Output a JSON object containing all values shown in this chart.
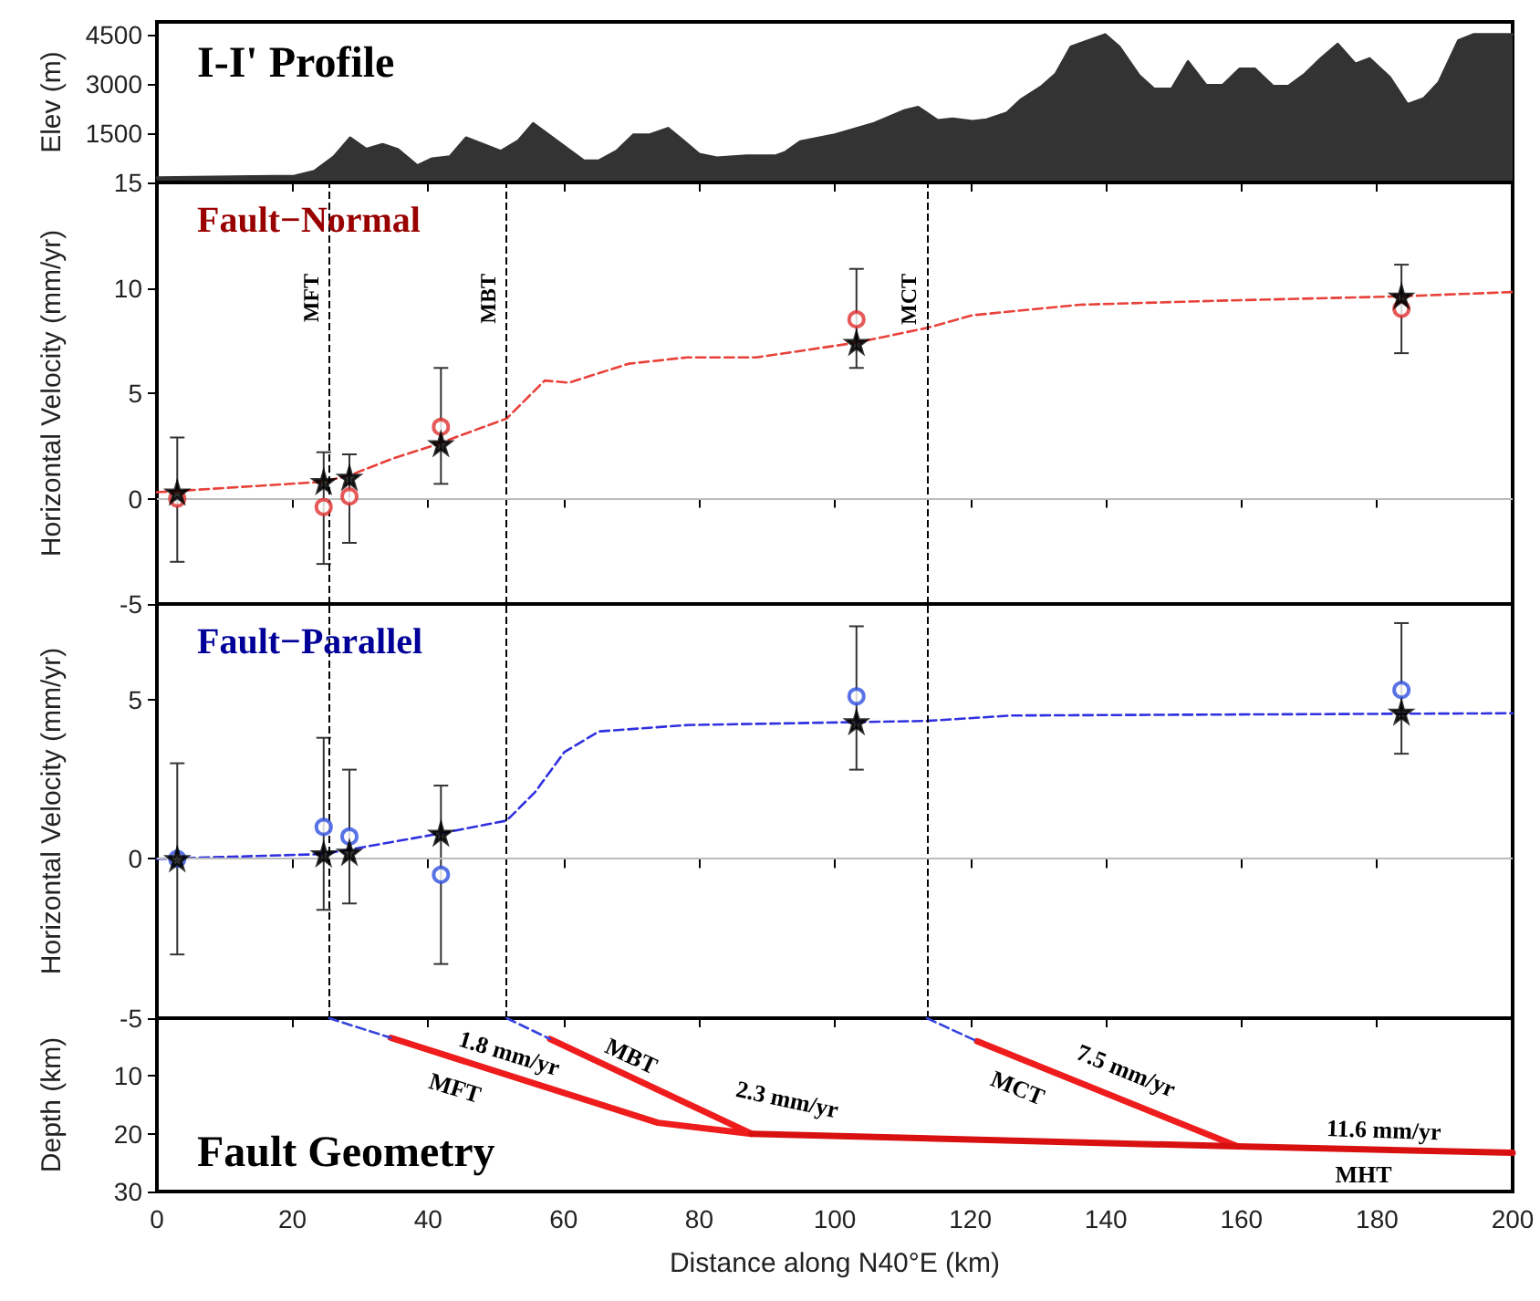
{
  "chart_data": [
    {
      "type": "area",
      "title": "I-I' Profile",
      "ylabel": "Elev (m)",
      "xlim": [
        0,
        200
      ],
      "xticks": [
        0,
        20,
        40,
        60,
        80,
        100,
        120,
        140,
        160,
        180,
        200
      ],
      "ylim": [
        0,
        4900
      ],
      "yticks": [
        1500,
        3000,
        4500
      ],
      "tick_labels": "y",
      "marker": "none",
      "series": [
        {
          "color": "#333333",
          "x": [
            0,
            20.3,
            23.2,
            26.1,
            28.5,
            30.9,
            33.3,
            35.5,
            38.4,
            40.6,
            43.2,
            45.6,
            50.7,
            53.3,
            55.5,
            63.0,
            65.2,
            67.8,
            70.3,
            72.7,
            75.4,
            77.5,
            80.0,
            82.6,
            87.0,
            91.3,
            92.7,
            94.9,
            100.0,
            105.8,
            110.1,
            112.3,
            115.2,
            117.4,
            120.3,
            122.4,
            125.4,
            127.5,
            130.4,
            132.6,
            134.8,
            139.9,
            142.0,
            144.9,
            147.1,
            149.7,
            152.1,
            154.8,
            157.2,
            159.7,
            162.0,
            164.7,
            166.9,
            169.2,
            171.7,
            174.2,
            176.8,
            178.9,
            181.9,
            184.5,
            186.9,
            189.1,
            192.0,
            194.2,
            200
          ],
          "values": [
            150,
            200,
            350,
            790,
            1370,
            1020,
            1170,
            1020,
            520,
            730,
            790,
            1370,
            960,
            1280,
            1810,
            670,
            670,
            960,
            1460,
            1460,
            1660,
            1310,
            870,
            760,
            820,
            820,
            930,
            1250,
            1460,
            1810,
            2190,
            2300,
            1900,
            1950,
            1870,
            1920,
            2130,
            2540,
            2920,
            3320,
            4140,
            4520,
            4140,
            3270,
            2860,
            2860,
            3700,
            2970,
            2970,
            3470,
            3470,
            2940,
            2940,
            3290,
            3790,
            4230,
            3620,
            3790,
            3210,
            2390,
            2570,
            3060,
            4340,
            4520,
            4520
          ]
        }
      ]
    },
    {
      "type": "line",
      "title": "Fault−Normal",
      "ylabel": "Horizontal Velocity (mm/yr)",
      "xlim": [
        0,
        200
      ],
      "xticks": [
        0,
        20,
        40,
        60,
        80,
        100,
        120,
        140,
        160,
        180,
        200
      ],
      "ylim": [
        -5,
        15
      ],
      "yticks": [
        -5,
        0,
        5,
        10,
        15
      ],
      "tick_labels": "y",
      "ref_lines": [
        {
          "axis": "x",
          "value": 25.4,
          "label": "MFT",
          "color": "#000000",
          "line_style": "dashed"
        },
        {
          "axis": "x",
          "value": 51.6,
          "label": "MBT",
          "color": "#000000",
          "line_style": "dashed"
        },
        {
          "axis": "x",
          "value": 113.6,
          "label": "MCT",
          "color": "#000000",
          "line_style": "dashed"
        },
        {
          "axis": "y",
          "value": 0,
          "color": "#bbbbbb",
          "line_style": "solid"
        }
      ],
      "series": [
        {
          "color": "#e8413a",
          "line_style": "dashed",
          "marker": "none",
          "x": [
            0,
            24.6,
            28.4,
            34.8,
            40.6,
            51.6,
            57.2,
            60.8,
            69.6,
            78.2,
            88.4,
            103.2,
            113.6,
            120.3,
            136.2,
            157.9,
            183.6,
            200
          ],
          "values": [
            0.3,
            0.8,
            1.1,
            1.9,
            2.5,
            3.8,
            5.6,
            5.5,
            6.4,
            6.7,
            6.7,
            7.4,
            8.1,
            8.7,
            9.2,
            9.4,
            9.6,
            9.8
          ]
        },
        {
          "type": "scatter",
          "color": "#e03030",
          "marker": "circle",
          "x": [
            3,
            24.6,
            28.4,
            41.9,
            103.2,
            183.6
          ],
          "values": [
            0,
            -0.4,
            0.1,
            3.4,
            8.5,
            9.0
          ],
          "errors": [
            [
              -3.0,
              2.9
            ],
            [
              -3.1,
              2.2
            ],
            [
              -2.1,
              2.1
            ],
            [
              0.7,
              6.2
            ],
            [
              6.2,
              10.9
            ],
            [
              6.9,
              11.1
            ]
          ]
        },
        {
          "type": "scatter",
          "color": "#000000",
          "marker": "star",
          "x": [
            3,
            24.6,
            28.4,
            41.9,
            103.2,
            183.6
          ],
          "values": [
            0.3,
            0.8,
            1.0,
            2.6,
            7.4,
            9.6
          ]
        }
      ]
    },
    {
      "type": "line",
      "title": "Fault−Parallel",
      "ylabel": "Horizontal Velocity (mm/yr)",
      "xlim": [
        0,
        200
      ],
      "xticks": [
        0,
        20,
        40,
        60,
        80,
        100,
        120,
        140,
        160,
        180,
        200
      ],
      "ylim": [
        -5,
        8
      ],
      "yticks": [
        -5,
        0,
        5
      ],
      "tick_labels": "y",
      "ref_lines": [
        {
          "axis": "x",
          "value": 25.4,
          "color": "#000000",
          "line_style": "dashed"
        },
        {
          "axis": "x",
          "value": 51.6,
          "color": "#000000",
          "line_style": "dashed"
        },
        {
          "axis": "x",
          "value": 113.6,
          "color": "#000000",
          "line_style": "dashed"
        },
        {
          "axis": "y",
          "value": 0,
          "color": "#bbbbbb",
          "line_style": "solid"
        }
      ],
      "series": [
        {
          "color": "#3030e0",
          "line_style": "dashed",
          "marker": "none",
          "x": [
            0,
            24.6,
            41.9,
            51.6,
            55.8,
            60.1,
            65.2,
            78.2,
            113.6,
            126.1,
            200
          ],
          "values": [
            0,
            0.15,
            0.8,
            1.2,
            2.1,
            3.35,
            4.0,
            4.2,
            4.33,
            4.5,
            4.57
          ]
        },
        {
          "type": "scatter",
          "color": "#3050e0",
          "marker": "circle",
          "x": [
            3,
            24.6,
            28.4,
            41.9,
            103.2,
            183.6
          ],
          "values": [
            0,
            1.0,
            0.7,
            -0.5,
            5.1,
            5.3
          ],
          "errors": [
            [
              -3.0,
              3.0
            ],
            [
              -1.6,
              3.8
            ],
            [
              -1.4,
              2.8
            ],
            [
              -3.3,
              2.3
            ],
            [
              2.8,
              7.3
            ],
            [
              3.3,
              7.4
            ]
          ]
        },
        {
          "type": "scatter",
          "color": "#000000",
          "marker": "star",
          "x": [
            3,
            24.6,
            28.4,
            41.9,
            103.2,
            183.6
          ],
          "values": [
            0,
            0.15,
            0.2,
            0.8,
            4.3,
            4.6
          ]
        }
      ]
    },
    {
      "type": "line",
      "title": "Fault Geometry",
      "xlabel": "Distance along N40°E (km)",
      "ylabel": "Depth (km)",
      "xlim": [
        0,
        200
      ],
      "xticks": [
        0,
        20,
        40,
        60,
        80,
        100,
        120,
        140,
        160,
        180,
        200
      ],
      "ylim": [
        30,
        0
      ],
      "yticks": [
        10,
        20,
        30
      ],
      "marker": "none",
      "annotations": [
        "1.8 mm/yr",
        "2.3 mm/yr",
        "7.5 mm/yr",
        "11.6 mm/yr"
      ],
      "series": [
        {
          "name": "MFT",
          "color": "#ee1c1c",
          "line_style": "solid",
          "x": [
            34.5,
            73.9,
            87.7
          ],
          "values": [
            3.4,
            18.1,
            20.0
          ]
        },
        {
          "name": "MBT",
          "color": "#ee1c1c",
          "line_style": "solid",
          "x": [
            58.0,
            87.7
          ],
          "values": [
            3.6,
            20.0
          ]
        },
        {
          "name": "MCT",
          "color": "#ee1c1c",
          "line_style": "solid",
          "x": [
            121.0,
            159.4
          ],
          "values": [
            4.0,
            22.2
          ]
        },
        {
          "name": "MHT",
          "color": "#d81010",
          "line_style": "solid",
          "x": [
            87.7,
            159.4,
            200
          ],
          "values": [
            20.0,
            22.2,
            23.3
          ]
        },
        {
          "color": "#3344dd",
          "line_style": "dashed",
          "x": [
            25.4,
            34.5
          ],
          "values": [
            0,
            3.4
          ]
        },
        {
          "color": "#3344dd",
          "line_style": "dashed",
          "x": [
            51.6,
            58.0
          ],
          "values": [
            0,
            3.6
          ]
        },
        {
          "color": "#3344dd",
          "line_style": "dashed",
          "x": [
            113.6,
            121.0
          ],
          "values": [
            0,
            4.0
          ]
        }
      ]
    }
  ]
}
